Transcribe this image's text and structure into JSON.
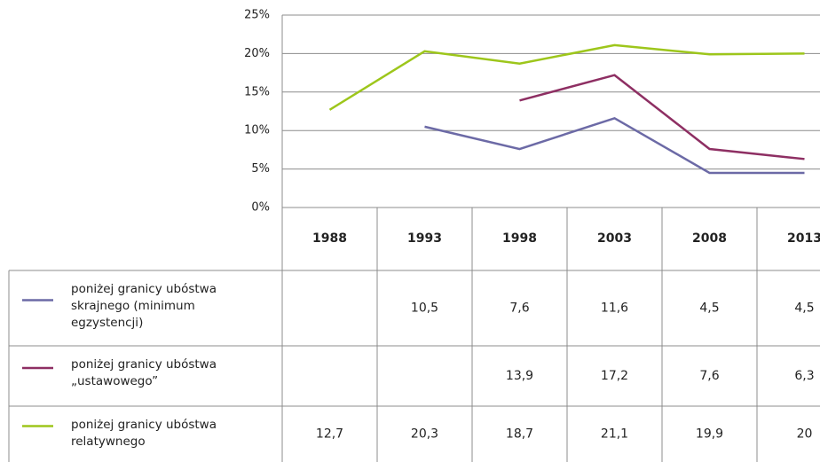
{
  "chart_data": {
    "type": "line",
    "categories": [
      "1988",
      "1993",
      "1998",
      "2003",
      "2008",
      "2013"
    ],
    "ylim": [
      0,
      25
    ],
    "yticks": [
      {
        "value": 0,
        "label": "0%"
      },
      {
        "value": 5,
        "label": "5%"
      },
      {
        "value": 10,
        "label": "10%"
      },
      {
        "value": 15,
        "label": "15%"
      },
      {
        "value": 20,
        "label": "20%"
      },
      {
        "value": 25,
        "label": "25%"
      }
    ],
    "grid": true,
    "series": [
      {
        "name": "poniżej granicy ubóstwa skrajnego (minimum egzystencji)",
        "color": "#6c6aa6",
        "values": [
          null,
          10.5,
          7.6,
          11.6,
          4.5,
          4.5
        ],
        "value_labels": [
          null,
          "10,5",
          "7,6",
          "11,6",
          "4,5",
          "4,5"
        ]
      },
      {
        "name": "poniżej granicy ubóstwa „ustawowego”",
        "color": "#8e2f63",
        "values": [
          null,
          null,
          13.9,
          17.2,
          7.6,
          6.3
        ],
        "value_labels": [
          null,
          null,
          "13,9",
          "17,2",
          "7,6",
          "6,3"
        ]
      },
      {
        "name": "poniżej granicy ubóstwa relatywnego",
        "color": "#9dc61b",
        "values": [
          12.7,
          20.3,
          18.7,
          21.1,
          19.9,
          20
        ],
        "value_labels": [
          "12,7",
          "20,3",
          "18,7",
          "21,1",
          "19,9",
          "20"
        ]
      }
    ]
  }
}
